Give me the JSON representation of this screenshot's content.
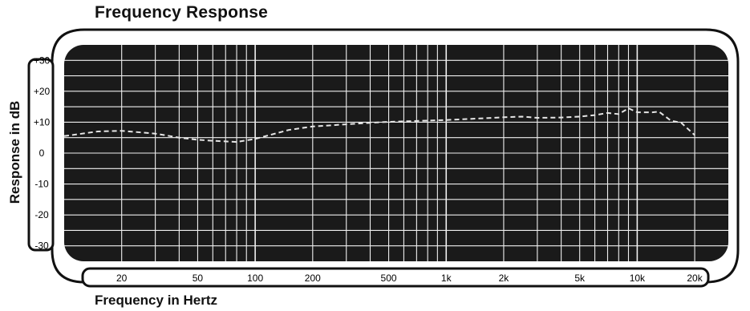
{
  "chart_data": {
    "type": "line",
    "title": "Frequency Response",
    "xlabel": "Frequency in Hertz",
    "ylabel": "Response in dB",
    "x_scale": "log",
    "xlim": [
      10,
      30000
    ],
    "ylim": [
      -35,
      35
    ],
    "x_ticks": [
      {
        "value": 20,
        "label": "20"
      },
      {
        "value": 50,
        "label": "50"
      },
      {
        "value": 100,
        "label": "100"
      },
      {
        "value": 200,
        "label": "200"
      },
      {
        "value": 500,
        "label": "500"
      },
      {
        "value": 1000,
        "label": "1k"
      },
      {
        "value": 2000,
        "label": "2k"
      },
      {
        "value": 5000,
        "label": "5k"
      },
      {
        "value": 10000,
        "label": "10k"
      },
      {
        "value": 20000,
        "label": "20k"
      }
    ],
    "y_ticks": [
      {
        "value": 30,
        "label": "+30"
      },
      {
        "value": 20,
        "label": "+20"
      },
      {
        "value": 10,
        "label": "+10"
      },
      {
        "value": 0,
        "label": "0"
      },
      {
        "value": -10,
        "label": "-10"
      },
      {
        "value": -20,
        "label": "-20"
      },
      {
        "value": -30,
        "label": "-30"
      }
    ],
    "grid": true,
    "series": [
      {
        "line_style": "dashed",
        "x": [
          10,
          15,
          20,
          30,
          40,
          50,
          60,
          80,
          100,
          150,
          200,
          300,
          400,
          500,
          700,
          1000,
          1500,
          2000,
          2500,
          3000,
          4000,
          5000,
          6000,
          7000,
          8000,
          9000,
          10000,
          12000,
          13000,
          15000,
          17000,
          20000
        ],
        "y": [
          5.5,
          7,
          7.2,
          6.3,
          5,
          4.3,
          4,
          3.6,
          4.6,
          7.5,
          8.6,
          9.3,
          9.8,
          10.1,
          10.4,
          10.7,
          11.2,
          11.6,
          11.8,
          11.4,
          11.5,
          11.8,
          12.3,
          13,
          12.6,
          14.5,
          13.2,
          13.2,
          13.4,
          10.5,
          9.8,
          5.8
        ]
      }
    ],
    "colors": {
      "background": "#1a1a1a",
      "grid": "#f0f0f0",
      "line": "#e6e6e6"
    }
  }
}
